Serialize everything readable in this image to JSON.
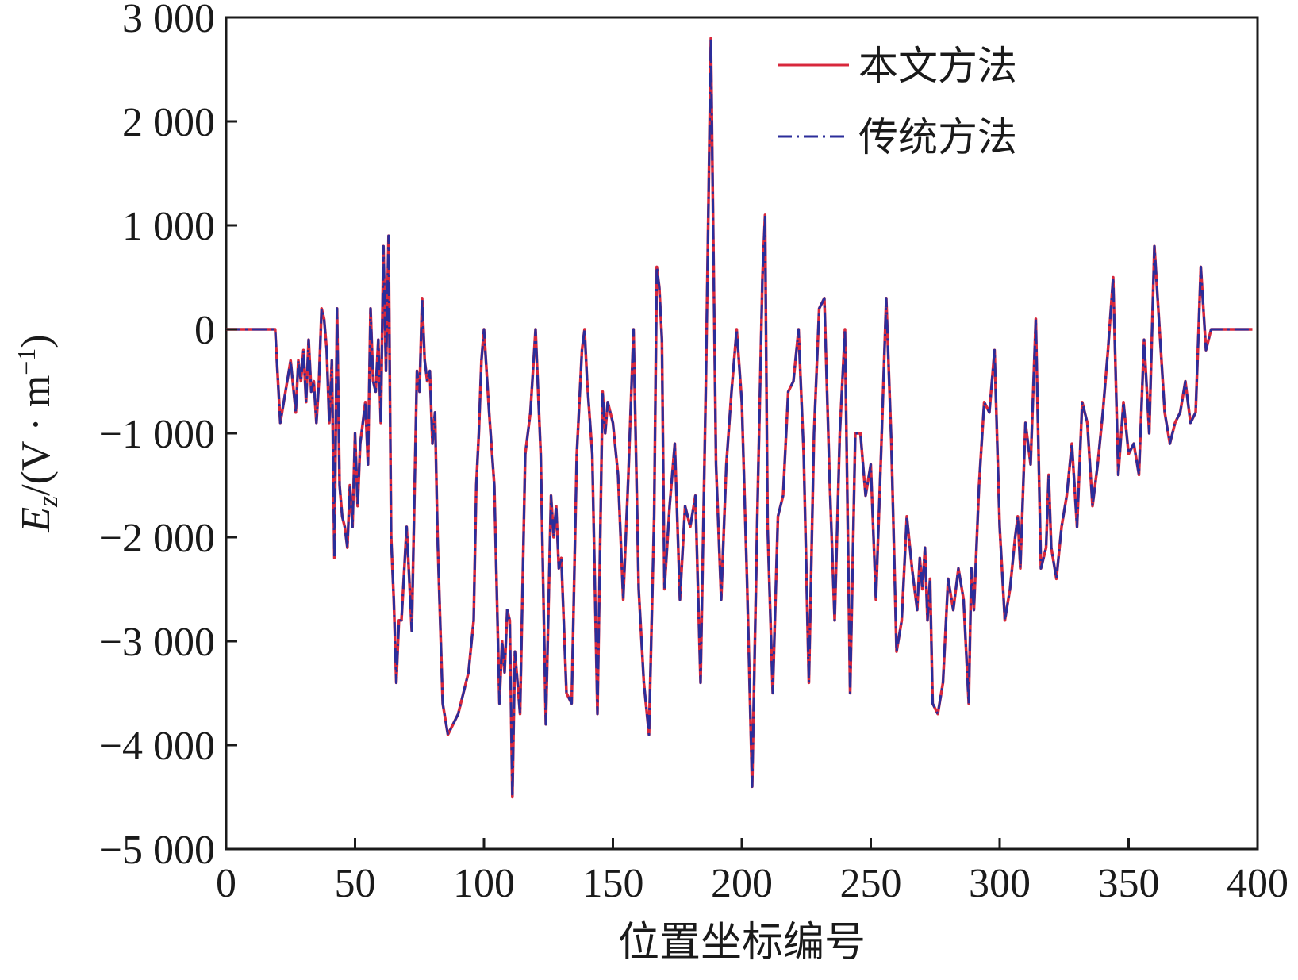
{
  "chart_data": {
    "type": "line",
    "xlabel": "位置坐标编号",
    "ylabel_main": "E",
    "ylabel_sub": "z",
    "ylabel_unit": "/(V · m",
    "ylabel_sup": "−1",
    "ylabel_close": ")",
    "xlim": [
      0,
      400
    ],
    "ylim": [
      -5000,
      3000
    ],
    "x_ticks": [
      0,
      50,
      100,
      150,
      200,
      250,
      300,
      350,
      400
    ],
    "x_tick_labels": [
      "0",
      "50",
      "100",
      "150",
      "200",
      "250",
      "300",
      "350",
      "400"
    ],
    "y_ticks": [
      3000,
      2000,
      1000,
      0,
      -1000,
      -2000,
      -3000,
      -4000,
      -5000
    ],
    "y_tick_labels": [
      "3 000",
      "2 000",
      "1 000",
      "0",
      "−1 000",
      "−2 000",
      "−3 000",
      "−4 000",
      "−5 000"
    ],
    "grid": false,
    "legend_position": "top-right",
    "series": [
      {
        "name": "本文方法",
        "color": "#d8283c",
        "style": "solid"
      },
      {
        "name": "传统方法",
        "color": "#2b2d9a",
        "style": "dashdot"
      }
    ],
    "x": [
      0,
      19,
      21,
      23,
      25,
      27,
      28,
      29,
      30,
      31,
      32,
      33,
      34,
      35,
      36,
      37,
      38,
      39,
      40,
      41,
      42,
      43,
      44,
      45,
      46,
      47,
      48,
      49,
      50,
      51,
      52,
      53,
      54,
      55,
      56,
      57,
      58,
      59,
      60,
      61,
      62,
      63,
      64,
      65,
      66,
      67,
      68,
      70,
      71,
      72,
      74,
      75,
      76,
      77,
      78,
      79,
      80,
      81,
      82,
      84,
      86,
      88,
      90,
      92,
      94,
      96,
      97,
      98,
      99,
      100,
      102,
      104,
      106,
      107,
      108,
      109,
      110,
      111,
      112,
      113,
      114,
      116,
      118,
      120,
      122,
      124,
      126,
      127,
      128,
      129,
      130,
      132,
      134,
      136,
      138,
      139,
      140,
      142,
      144,
      146,
      147,
      148,
      150,
      152,
      154,
      156,
      158,
      160,
      162,
      164,
      166,
      167,
      168,
      169,
      170,
      172,
      174,
      176,
      178,
      180,
      182,
      184,
      186,
      188,
      190,
      192,
      194,
      196,
      198,
      200,
      202,
      204,
      206,
      208,
      209,
      210,
      212,
      214,
      216,
      218,
      220,
      222,
      224,
      226,
      228,
      230,
      232,
      234,
      236,
      238,
      240,
      242,
      244,
      246,
      248,
      250,
      252,
      254,
      256,
      258,
      260,
      262,
      264,
      266,
      268,
      269,
      270,
      271,
      272,
      273,
      274,
      276,
      278,
      280,
      282,
      284,
      286,
      288,
      289,
      290,
      292,
      294,
      296,
      298,
      300,
      302,
      304,
      306,
      307,
      308,
      310,
      312,
      314,
      316,
      318,
      319,
      320,
      322,
      324,
      326,
      328,
      330,
      332,
      334,
      336,
      338,
      340,
      342,
      344,
      346,
      348,
      350,
      352,
      354,
      356,
      358,
      360,
      362,
      364,
      366,
      368,
      370,
      372,
      374,
      376,
      378,
      380,
      382,
      384,
      386,
      388,
      390,
      392,
      394,
      396,
      398
    ],
    "values": [
      0,
      0,
      -900,
      -600,
      -300,
      -800,
      -300,
      -500,
      -200,
      -700,
      -100,
      -600,
      -500,
      -900,
      -500,
      200,
      100,
      -200,
      -900,
      -300,
      -2200,
      200,
      -1500,
      -1800,
      -1900,
      -2100,
      -1500,
      -1900,
      -1000,
      -1700,
      -1100,
      -900,
      -700,
      -1300,
      200,
      -500,
      -600,
      -100,
      -900,
      800,
      -400,
      900,
      -2000,
      -2600,
      -3400,
      -2800,
      -2800,
      -1900,
      -2400,
      -2900,
      -400,
      -600,
      300,
      -300,
      -500,
      -400,
      -1100,
      -800,
      -2000,
      -3600,
      -3900,
      -3800,
      -3700,
      -3500,
      -3300,
      -2800,
      -1500,
      -1000,
      -300,
      0,
      -800,
      -1500,
      -3600,
      -3000,
      -3300,
      -2700,
      -2800,
      -4500,
      -3100,
      -3400,
      -3700,
      -1200,
      -800,
      0,
      -1200,
      -3800,
      -1600,
      -2000,
      -1700,
      -2300,
      -2200,
      -3500,
      -3600,
      -1200,
      -200,
      0,
      -500,
      -1200,
      -3700,
      -600,
      -1000,
      -700,
      -900,
      -1400,
      -2600,
      -1400,
      0,
      -2500,
      -3400,
      -3900,
      -1800,
      600,
      400,
      -100,
      -2500,
      -1700,
      -1100,
      -2600,
      -1700,
      -1900,
      -1600,
      -3400,
      -600,
      2800,
      -1300,
      -2600,
      -1300,
      -600,
      0,
      -700,
      -2400,
      -4400,
      -1800,
      500,
      1100,
      -1900,
      -3500,
      -1800,
      -1600,
      -600,
      -500,
      0,
      -1200,
      -3400,
      -1000,
      200,
      300,
      -1400,
      -2800,
      -1000,
      0,
      -3500,
      -1000,
      -1000,
      -1600,
      -1300,
      -2600,
      -1200,
      300,
      -1100,
      -3100,
      -2800,
      -1800,
      -2300,
      -2700,
      -2200,
      -2500,
      -2100,
      -2800,
      -2400,
      -3600,
      -3700,
      -3400,
      -2400,
      -2700,
      -2300,
      -2600,
      -3600,
      -2300,
      -2700,
      -1500,
      -700,
      -800,
      -200,
      -1900,
      -2800,
      -2500,
      -2000,
      -1800,
      -2300,
      -900,
      -1300,
      100,
      -2300,
      -2100,
      -1400,
      -2100,
      -2400,
      -1900,
      -1600,
      -1100,
      -1900,
      -700,
      -900,
      -1700,
      -1300,
      -800,
      -200,
      500,
      -1400,
      -700,
      -1200,
      -1100,
      -1400,
      -100,
      -1000,
      800,
      0,
      -800,
      -1100,
      -900,
      -800,
      -500,
      -900,
      -800,
      600,
      -200,
      0,
      0,
      0,
      0,
      0,
      0,
      0,
      0,
      0
    ]
  }
}
